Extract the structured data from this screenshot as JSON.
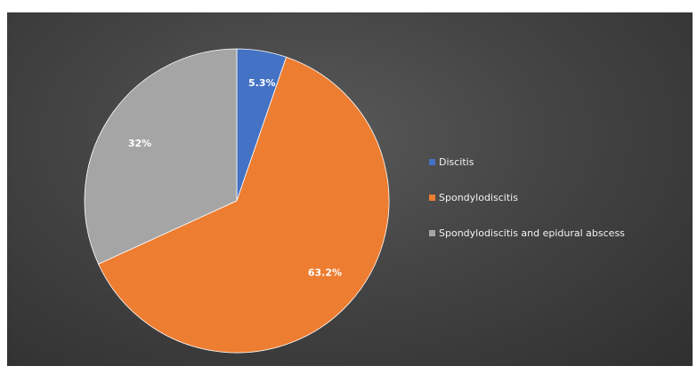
{
  "chart_data": {
    "type": "pie",
    "title": "",
    "categories": [
      "Discitis",
      "Spondylodiscitis",
      "Spondylodiscitis and epidural abscess"
    ],
    "values": [
      5.3,
      63.2,
      32
    ],
    "data_labels": [
      "5.3%",
      "63.2%",
      "32%"
    ],
    "colors": [
      "#4472c4",
      "#ed7d31",
      "#a5a5a5"
    ],
    "start_angle_deg": 0,
    "direction": "clockwise",
    "legend": {
      "position": "right",
      "entries": [
        "Discitis",
        "Spondylodiscitis",
        "Spondylodiscitis and epidural abscess"
      ]
    },
    "background": "#404040"
  }
}
